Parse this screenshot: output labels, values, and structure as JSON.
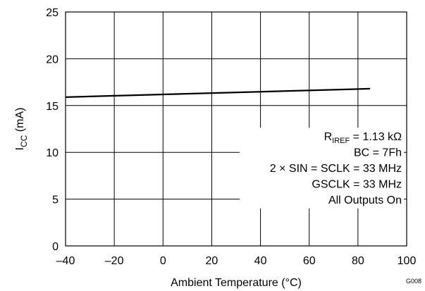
{
  "chart_data": {
    "type": "line",
    "title": "",
    "xlabel": "Ambient Temperature (°C)",
    "ylabel": {
      "main": "I",
      "sub": "CC",
      "rest": " (mA)"
    },
    "xlim": [
      -40,
      100
    ],
    "ylim": [
      0,
      25
    ],
    "x_ticks": [
      -40,
      -20,
      0,
      20,
      40,
      60,
      80,
      100
    ],
    "x_tick_labels": [
      "–40",
      "–20",
      "0",
      "20",
      "40",
      "60",
      "80",
      "100"
    ],
    "y_ticks": [
      0,
      5,
      10,
      15,
      20,
      25
    ],
    "y_tick_labels": [
      "0",
      "5",
      "10",
      "15",
      "20",
      "25"
    ],
    "grid": true,
    "series": [
      {
        "x": [
          -40,
          85
        ],
        "y": [
          15.9,
          16.8
        ],
        "color": "#000000"
      }
    ],
    "annotations": [
      {
        "main": "R",
        "sub": "IREF",
        "rest": " = 1.13 kΩ"
      },
      {
        "main": "BC = 7Fh",
        "sub": "",
        "rest": ""
      },
      {
        "main": "2 × SIN = SCLK = 33 MHz",
        "sub": "",
        "rest": ""
      },
      {
        "main": "GSCLK = 33 MHz",
        "sub": "",
        "rest": ""
      },
      {
        "main": "All Outputs On",
        "sub": "",
        "rest": ""
      }
    ],
    "figure_id": "G008"
  }
}
